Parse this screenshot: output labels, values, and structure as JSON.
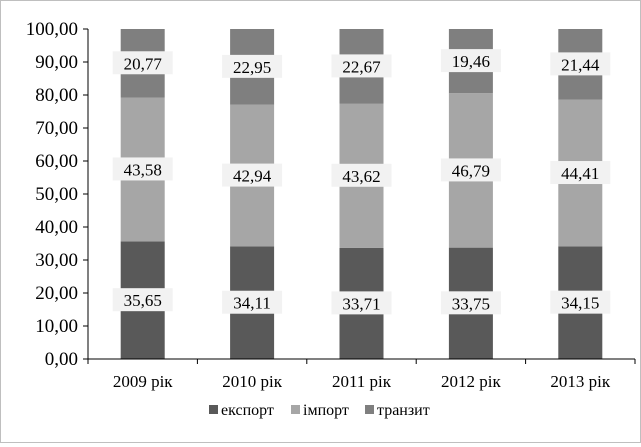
{
  "chart_data": {
    "type": "bar",
    "stacked": true,
    "categories": [
      "2009 рік",
      "2010 рік",
      "2011 рік",
      "2012 рік",
      "2013 рік"
    ],
    "series": [
      {
        "name": "експорт",
        "values": [
          35.65,
          34.11,
          33.71,
          33.75,
          34.15
        ],
        "color": "#595959"
      },
      {
        "name": "імпорт",
        "values": [
          43.58,
          42.94,
          43.62,
          46.79,
          44.41
        ],
        "color": "#a6a6a6"
      },
      {
        "name": "транзит",
        "values": [
          20.77,
          22.95,
          22.67,
          19.46,
          21.44
        ],
        "color": "#7f7f7f"
      }
    ],
    "data_labels": [
      [
        "35,65",
        "34,11",
        "33,71",
        "33,75",
        "34,15"
      ],
      [
        "43,58",
        "42,94",
        "43,62",
        "46,79",
        "44,41"
      ],
      [
        "20,77",
        "22,95",
        "22,67",
        "19,46",
        "21,44"
      ]
    ],
    "y_ticks": [
      "0,00",
      "10,00",
      "20,00",
      "30,00",
      "40,00",
      "50,00",
      "60,00",
      "70,00",
      "80,00",
      "90,00",
      "100,00"
    ],
    "ylim": [
      0,
      100
    ],
    "grid": false,
    "legend_position": "bottom"
  }
}
